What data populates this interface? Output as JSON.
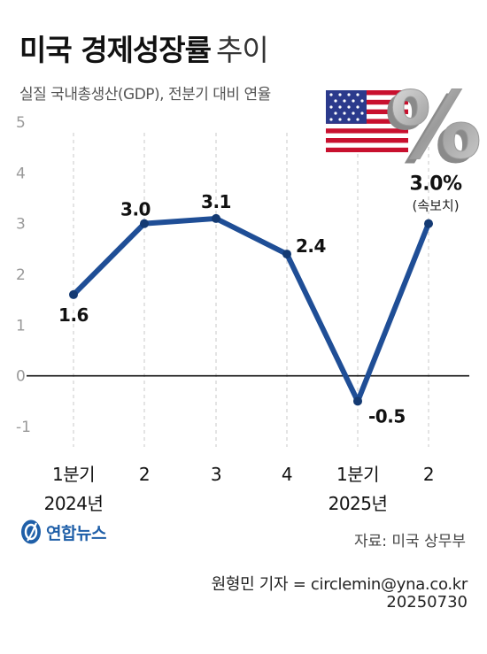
{
  "title": {
    "main": "미국 경제성장률",
    "light": "추이"
  },
  "subtitle": "실질 국내총생산(GDP), 전분기 대비 연율",
  "chart_data": {
    "type": "line",
    "title": "미국 경제성장률 추이",
    "subtitle": "실질 국내총생산(GDP), 전분기 대비 연율",
    "categories": [
      "1분기",
      "2",
      "3",
      "4",
      "1분기",
      "2"
    ],
    "year_labels": [
      {
        "label": "2024년",
        "category_index": 0
      },
      {
        "label": "2025년",
        "category_index": 4
      }
    ],
    "series": [
      {
        "values": [
          1.6,
          3.0,
          3.1,
          2.4,
          -0.5,
          3.0
        ],
        "color": "#1f4e96"
      }
    ],
    "data_labels": [
      "1.6",
      "3.0",
      "3.1",
      "2.4",
      "-0.5",
      "3.0%"
    ],
    "last_point_note": "(속보치)",
    "y_ticks": [
      "5",
      "4",
      "3",
      "2",
      "1",
      "0",
      "-1"
    ],
    "ylim": [
      -1,
      5
    ],
    "grid": "dashed-vertical",
    "zero_line": true
  },
  "source": "자료: 미국 상무부",
  "credit": "원형민 기자 = circlemin@yna.co.kr",
  "date": "20250730",
  "logo": {
    "text": "연합뉴스",
    "icon": "yonhap-logo-icon",
    "color": "#1f5fa8"
  },
  "decoration": {
    "flag_icon": "us-flag-icon",
    "percent_icon": "percent-sign-icon",
    "percent_glyph": "%"
  }
}
